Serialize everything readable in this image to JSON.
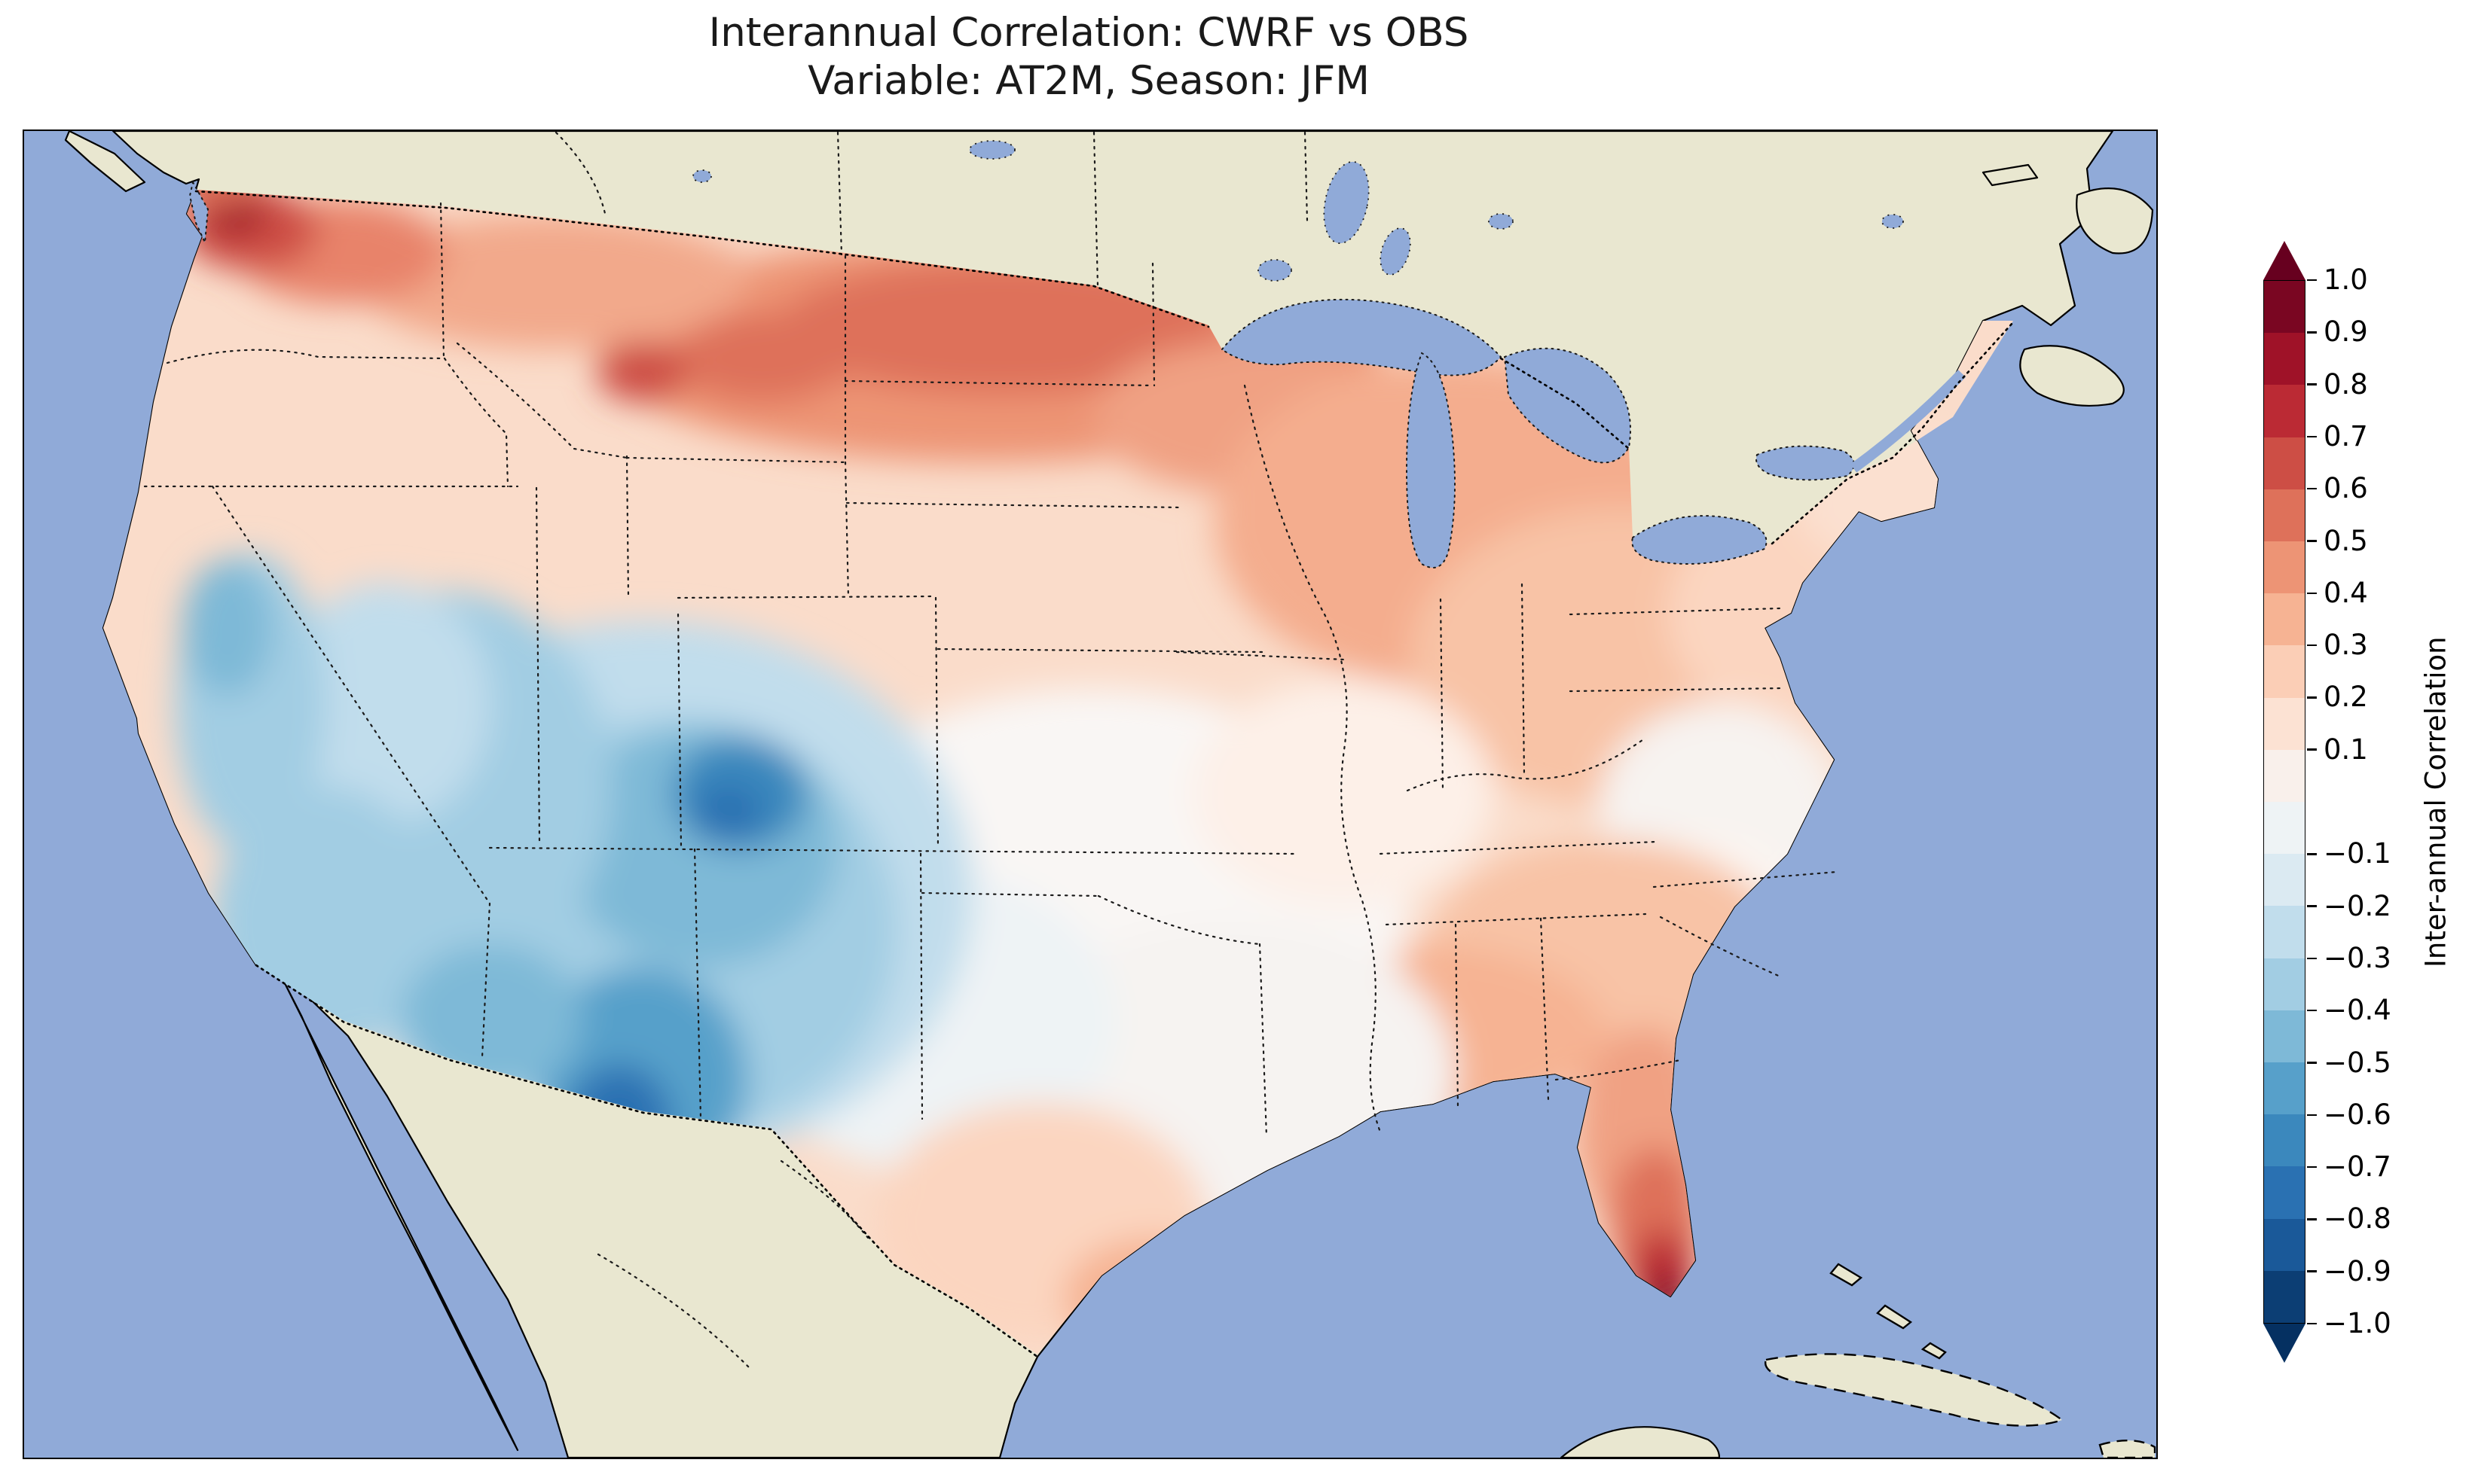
{
  "chart_data": {
    "type": "heatmap",
    "title": "Interannual Correlation: CWRF vs OBS",
    "subtitle": "Variable: AT2M, Season: JFM",
    "comparison": "CWRF vs OBS",
    "variable": "AT2M",
    "season": "JFM",
    "region_shown": "Continental United States with surrounding Canada, Mexico, Gulf of Mexico and Atlantic",
    "colormap": "RdBu_r diverging (red positive, blue negative)",
    "value_range": [
      -1.0,
      1.0
    ],
    "contour_interval": 0.1,
    "legend_position": "right vertical colorbar with extend arrows both ends",
    "colorbar": {
      "label": "Inter-annual Correlation",
      "ticks": [
        "1.0",
        "0.9",
        "0.8",
        "0.7",
        "0.6",
        "0.5",
        "0.4",
        "0.3",
        "0.2",
        "0.1",
        "−0.1",
        "−0.2",
        "−0.3",
        "−0.4",
        "−0.5",
        "−0.6",
        "−0.7",
        "−0.8",
        "−0.9",
        "−1.0"
      ],
      "segment_colors": [
        "#7a0622",
        "#9f1228",
        "#bb2a34",
        "#cd4e45",
        "#de715a",
        "#ed9475",
        "#f6b393",
        "#fbceb6",
        "#fce2d3",
        "#f9f0eb",
        "#eef3f5",
        "#dbeaf2",
        "#c1ddec",
        "#a2cde3",
        "#7eb9d7",
        "#57a0ca",
        "#3b88bd",
        "#2a71b2",
        "#1a5999",
        "#0c3e74"
      ],
      "extend_over_color": "#67001f",
      "extend_under_color": "#053061"
    },
    "regional_values": [
      {
        "region": "Pacific Northwest (Puget Sound / Washington)",
        "correlation": 0.6
      },
      {
        "region": "Northern Plains (Montana / Dakotas / Minnesota)",
        "correlation": 0.45
      },
      {
        "region": "Upper Midwest / Great Lakes",
        "correlation": 0.35
      },
      {
        "region": "Northeast / Mid-Atlantic",
        "correlation": 0.25
      },
      {
        "region": "Ohio Valley",
        "correlation": 0.3
      },
      {
        "region": "Southeast (Georgia / Gulf states)",
        "correlation": 0.2
      },
      {
        "region": "South Florida peninsula tip",
        "correlation": 0.8
      },
      {
        "region": "Central Plains (Kansas / Oklahoma / Missouri)",
        "correlation": 0.0
      },
      {
        "region": "Texas",
        "correlation": 0.1
      },
      {
        "region": "Four Corners / Colorado Plateau core",
        "correlation": -0.65
      },
      {
        "region": "Southwest (Arizona / New Mexico)",
        "correlation": -0.5
      },
      {
        "region": "Great Basin (Nevada / Utah)",
        "correlation": -0.35
      },
      {
        "region": "California interior / northern coast ranges",
        "correlation": -0.3
      }
    ],
    "palette": {
      "ocean": "#90aad8",
      "land_outside_domain": "#e9e7d0",
      "coastline": "#000000",
      "strong_positive": "#67001f",
      "strong_negative": "#053061"
    }
  }
}
